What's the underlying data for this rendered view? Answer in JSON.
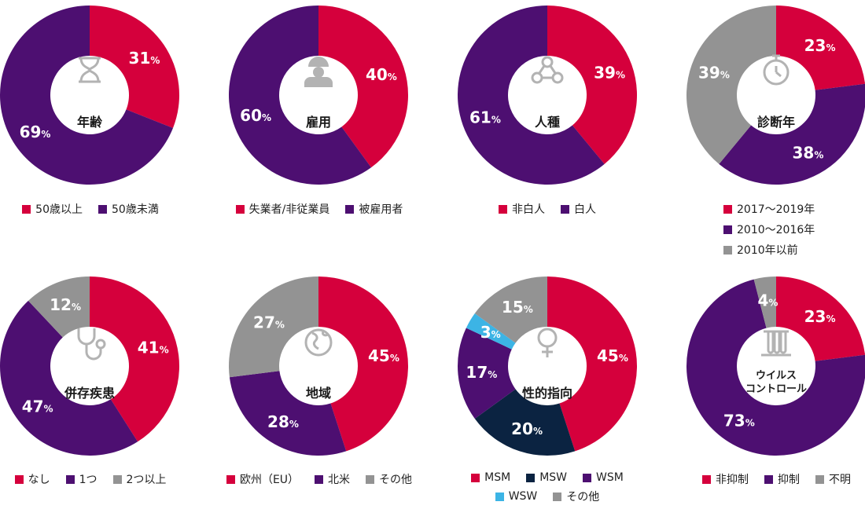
{
  "colors": {
    "red": "#D5003C",
    "purple": "#4D0F71",
    "gray": "#939393",
    "navy": "#0B2341",
    "cyan": "#3CB4E5"
  },
  "chart_data": [
    {
      "type": "pie",
      "title": "年齢",
      "icon": "hourglass-icon",
      "slices": [
        {
          "label": "50歳以上",
          "value": 31,
          "color": "red"
        },
        {
          "label": "50歳未満",
          "value": 69,
          "color": "purple"
        }
      ]
    },
    {
      "type": "pie",
      "title": "雇用",
      "icon": "worker-icon",
      "slices": [
        {
          "label": "失業者/非従業員",
          "value": 40,
          "color": "red"
        },
        {
          "label": "被雇用者",
          "value": 60,
          "color": "purple"
        }
      ]
    },
    {
      "type": "pie",
      "title": "人種",
      "icon": "people-network-icon",
      "slices": [
        {
          "label": "非白人",
          "value": 39,
          "color": "red"
        },
        {
          "label": "白人",
          "value": 61,
          "color": "purple"
        }
      ]
    },
    {
      "type": "pie",
      "title": "診断年",
      "icon": "stopwatch-icon",
      "slices": [
        {
          "label": "2017～2019年",
          "value": 23,
          "color": "red"
        },
        {
          "label": "2010～2016年",
          "value": 38,
          "color": "purple"
        },
        {
          "label": "2010年以前",
          "value": 39,
          "color": "gray"
        }
      ]
    },
    {
      "type": "pie",
      "title": "併存疾患",
      "icon": "stethoscope-icon",
      "slices": [
        {
          "label": "なし",
          "value": 41,
          "color": "red"
        },
        {
          "label": "1つ",
          "value": 47,
          "color": "purple"
        },
        {
          "label": "2つ以上",
          "value": 12,
          "color": "gray"
        }
      ]
    },
    {
      "type": "pie",
      "title": "地域",
      "icon": "globe-icon",
      "slices": [
        {
          "label": "欧州（EU）",
          "value": 45,
          "color": "red"
        },
        {
          "label": "北米",
          "value": 28,
          "color": "purple"
        },
        {
          "label": "その他",
          "value": 27,
          "color": "gray"
        }
      ]
    },
    {
      "type": "pie",
      "title": "性的指向",
      "icon": "female-symbol-icon",
      "slices": [
        {
          "label": "MSM",
          "value": 45,
          "color": "red"
        },
        {
          "label": "MSW",
          "value": 20,
          "color": "navy"
        },
        {
          "label": "WSM",
          "value": 17,
          "color": "purple"
        },
        {
          "label": "WSW",
          "value": 3,
          "color": "cyan"
        },
        {
          "label": "その他",
          "value": 15,
          "color": "gray"
        }
      ]
    },
    {
      "type": "pie",
      "title": "ウイルス\nコントロール",
      "icon": "test-tubes-icon",
      "slices": [
        {
          "label": "非抑制",
          "value": 23,
          "color": "red"
        },
        {
          "label": "抑制",
          "value": 73,
          "color": "purple"
        },
        {
          "label": "不明",
          "value": 4,
          "color": "gray"
        }
      ]
    }
  ]
}
